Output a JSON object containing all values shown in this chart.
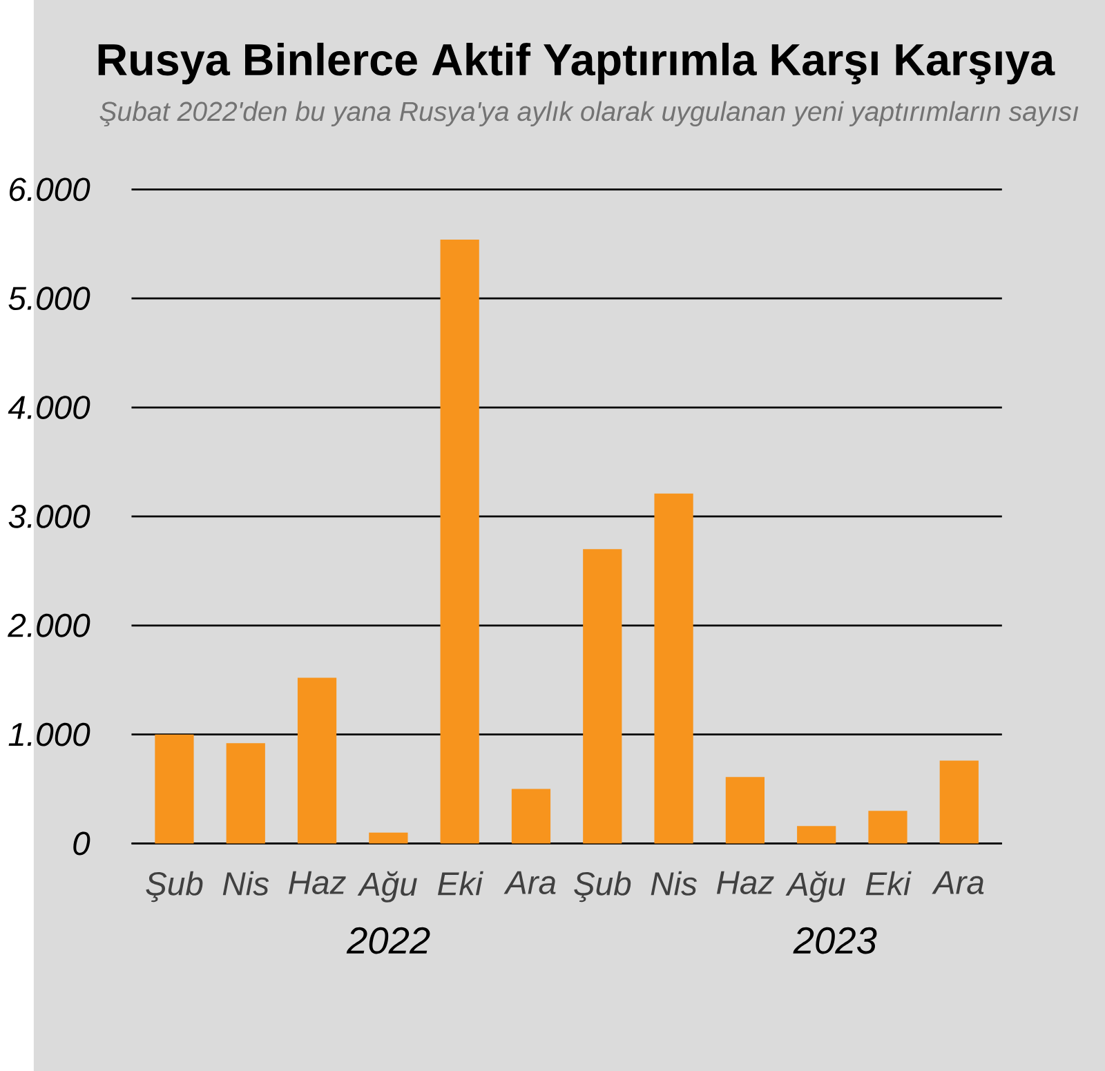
{
  "chart_data": {
    "type": "bar",
    "title": "Rusya Binlerce Aktif Yaptırımla Karşı Karşıya",
    "subtitle": "Şubat 2022'den bu yana Rusya'ya aylık olarak uygulanan yeni yaptırımların sayısı",
    "categories": [
      "Şub",
      "Nis",
      "Haz",
      "Ağu",
      "Eki",
      "Ara",
      "Şub",
      "Nis",
      "Haz",
      "Ağu",
      "Eki",
      "Ara"
    ],
    "values": [
      1000,
      920,
      1520,
      100,
      5540,
      500,
      2700,
      3210,
      610,
      160,
      300,
      760
    ],
    "color": "#f7941d",
    "ylim": [
      0,
      6000
    ],
    "yticks": [
      {
        "value": 0,
        "label": "0"
      },
      {
        "value": 1000,
        "label": "1.000"
      },
      {
        "value": 2000,
        "label": "2.000"
      },
      {
        "value": 3000,
        "label": "3.000"
      },
      {
        "value": 4000,
        "label": "4.000"
      },
      {
        "value": 5000,
        "label": "5.000"
      },
      {
        "value": 6000,
        "label": "6.000"
      }
    ],
    "grid": "y",
    "annotations": [
      "2022",
      "2023"
    ]
  }
}
